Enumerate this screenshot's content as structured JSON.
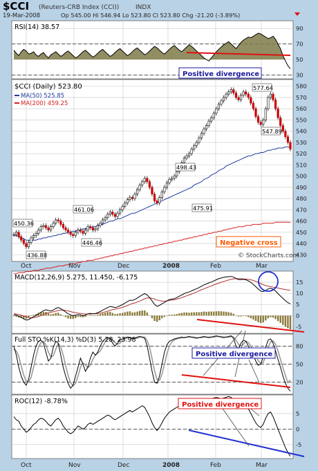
{
  "header": {
    "symbol": "$CCI",
    "source": "(Reuters-CRB Index (CCI))",
    "exchange": "INDX",
    "date": "19-Mar-2008",
    "quote": "Op 545.00  Hi 546.94  Lo 523.80  Cl 523.80  Chg -21.20 (-3.89%)",
    "watermark": "© StockCharts.com"
  },
  "colors": {
    "frame": "#b9d2e6",
    "panel": "#ffffff",
    "grid": "#c8c8c8",
    "price_line": "#000000",
    "up_bar": "#000000",
    "down_bar": "#cc0000",
    "ma50": "#1f3a9e",
    "ma200": "#d71f1f",
    "rsi_fill": "#7e7a48",
    "annotation_red": "#e01010",
    "annotation_blue": "#2030d0",
    "label_blue": "#1a1aa0",
    "label_orange": "#ff5a00",
    "label_red": "#e01010"
  },
  "months": [
    "Oct",
    "Nov",
    "Dec",
    "2008",
    "Feb",
    "Mar"
  ],
  "annotations": {
    "rsi": "Positive divergence",
    "price": "Negative cross",
    "sto": "Positive divergence",
    "roc": "Positive divergence"
  },
  "chart_data": [
    {
      "type": "line",
      "title": "RSI(14) 38.57",
      "y_ticks": [
        30,
        50,
        70,
        90
      ],
      "ylim": [
        25,
        100
      ],
      "reference_lines": [
        30,
        70
      ],
      "y_values": [
        62,
        58,
        55,
        60,
        63,
        61,
        57,
        58,
        60,
        56,
        54,
        57,
        59,
        55,
        52,
        56,
        58,
        60,
        57,
        54,
        56,
        59,
        61,
        58,
        55,
        52,
        54,
        57,
        60,
        62,
        59,
        56,
        53,
        55,
        58,
        61,
        63,
        60,
        57,
        54,
        56,
        59,
        62,
        64,
        61,
        58,
        55,
        57,
        60,
        63,
        65,
        62,
        59,
        56,
        58,
        61,
        64,
        67,
        65,
        62,
        59,
        57,
        60,
        63,
        66,
        68,
        65,
        62,
        60,
        63,
        66,
        69,
        67,
        64,
        61,
        58,
        55,
        52,
        50,
        48,
        52,
        56,
        60,
        63,
        66,
        69,
        71,
        73,
        70,
        67,
        64,
        68,
        72,
        75,
        77,
        79,
        78,
        80,
        82,
        84,
        83,
        81,
        79,
        77,
        78,
        80,
        76,
        70,
        64,
        55,
        48,
        42,
        38
      ]
    },
    {
      "type": "line",
      "title": "$CCI (Daily) 523.80",
      "series": [
        {
          "name": "MA(50) 525.85"
        },
        {
          "name": "MA(200) 459.25"
        }
      ],
      "y_ticks": [
        430,
        440,
        450,
        460,
        470,
        480,
        490,
        500,
        510,
        520,
        530,
        540,
        550,
        560,
        570,
        580
      ],
      "ylim": [
        424,
        586
      ],
      "price_labels": [
        "450.36",
        "436.88",
        "461.06",
        "446.46",
        "498.43",
        "475.91",
        "577.64",
        "547.89"
      ],
      "close": [
        448,
        450,
        446,
        443,
        440,
        437,
        441,
        445,
        447,
        449,
        452,
        455,
        456,
        454,
        452,
        455,
        458,
        461,
        460,
        457,
        454,
        452,
        450,
        448,
        447,
        450,
        452,
        451,
        449,
        452,
        455,
        454,
        452,
        453,
        456,
        458,
        461,
        463,
        466,
        468,
        466,
        464,
        467,
        470,
        473,
        476,
        479,
        481,
        480,
        484,
        488,
        492,
        495,
        498,
        495,
        490,
        484,
        478,
        476,
        481,
        486,
        490,
        494,
        497,
        498,
        500,
        504,
        508,
        512,
        516,
        518,
        520,
        524,
        527,
        530,
        534,
        538,
        542,
        545,
        549,
        552,
        556,
        560,
        564,
        567,
        570,
        573,
        575,
        577,
        574,
        570,
        568,
        572,
        575,
        573,
        570,
        565,
        560,
        553,
        548,
        546,
        550,
        560,
        570,
        573,
        568,
        560,
        552,
        545,
        540,
        535,
        530,
        524
      ],
      "ma50": [
        447,
        447,
        446,
        445,
        444,
        443,
        443,
        443,
        443,
        443,
        444,
        444,
        445,
        445,
        446,
        446,
        447,
        447,
        448,
        448,
        449,
        449,
        450,
        450,
        451,
        451,
        452,
        452,
        453,
        453,
        454,
        454,
        455,
        455,
        456,
        457,
        457,
        458,
        459,
        460,
        460,
        461,
        462,
        462,
        463,
        464,
        465,
        466,
        467,
        467,
        468,
        469,
        470,
        471,
        472,
        473,
        474,
        475,
        476,
        477,
        478,
        479,
        480,
        481,
        482,
        483,
        484,
        485,
        486,
        487,
        488,
        489,
        490,
        492,
        493,
        494,
        495,
        497,
        498,
        499,
        501,
        502,
        503,
        505,
        506,
        507,
        509,
        510,
        511,
        512,
        513,
        514,
        515,
        516,
        517,
        518,
        518,
        519,
        520,
        520,
        521,
        521,
        522,
        523,
        523,
        524,
        524,
        525,
        525,
        525,
        526,
        526,
        526
      ],
      "ma200": [
        413,
        413,
        414,
        414,
        414,
        415,
        415,
        415,
        416,
        416,
        416,
        417,
        417,
        418,
        418,
        418,
        419,
        419,
        420,
        420,
        420,
        421,
        421,
        422,
        422,
        422,
        423,
        423,
        424,
        424,
        425,
        425,
        425,
        426,
        426,
        427,
        427,
        428,
        428,
        429,
        429,
        430,
        430,
        431,
        431,
        432,
        432,
        433,
        433,
        434,
        434,
        435,
        435,
        436,
        436,
        437,
        437,
        438,
        438,
        439,
        439,
        440,
        440,
        441,
        441,
        442,
        442,
        443,
        443,
        444,
        444,
        445,
        445,
        446,
        446,
        447,
        447,
        448,
        448,
        449,
        449,
        450,
        450,
        451,
        451,
        452,
        452,
        453,
        453,
        454,
        454,
        455,
        455,
        455,
        456,
        456,
        456,
        457,
        457,
        457,
        457,
        458,
        458,
        458,
        458,
        458,
        459,
        459,
        459,
        459,
        459,
        459,
        459
      ]
    },
    {
      "type": "line",
      "title": "MACD(12,26,9) 5.275, 11.450, -6.175",
      "y_ticks": [
        -5,
        0,
        5,
        10,
        15
      ],
      "ylim": [
        -8,
        20
      ],
      "macd": [
        0.5,
        0.2,
        -0.3,
        -0.8,
        -1.5,
        -2,
        -1.8,
        -1.2,
        -0.5,
        0,
        0.8,
        1.5,
        2.2,
        2.6,
        2.3,
        2.1,
        2.5,
        3.2,
        3.6,
        3.1,
        2.4,
        1.6,
        0.8,
        0.3,
        0,
        0.2,
        0.5,
        0.3,
        0,
        0.2,
        0.8,
        1,
        0.8,
        0.9,
        1.3,
        1.8,
        2.5,
        3,
        3.6,
        4.1,
        3.9,
        3.6,
        3.9,
        4.4,
        4.9,
        5.6,
        6.3,
        6.9,
        6.8,
        7.2,
        7.9,
        8.6,
        9.3,
        9.9,
        9.3,
        8.1,
        6.6,
        5,
        4.2,
        4.6,
        5.3,
        5.9,
        6.6,
        7.2,
        7.4,
        7.6,
        8.1,
        8.7,
        9.3,
        9.9,
        10.3,
        10.6,
        11.1,
        11.6,
        12.1,
        12.6,
        13.2,
        13.8,
        14.2,
        14.7,
        15.1,
        15.6,
        16.1,
        16.6,
        16.9,
        17.2,
        17.4,
        17.5,
        17.6,
        17.3,
        16.7,
        16.2,
        16.2,
        16.3,
        16.1,
        15.6,
        14.9,
        14,
        13,
        11.9,
        11,
        10.8,
        11.3,
        12,
        12.3,
        11.9,
        11,
        9.9,
        8.8,
        7.7,
        6.7,
        5.8,
        5.3
      ],
      "signal": [
        0.8,
        0.7,
        0.5,
        0.2,
        -0.2,
        -0.6,
        -0.9,
        -1,
        -0.9,
        -0.7,
        -0.4,
        0,
        0.5,
        1,
        1.3,
        1.5,
        1.7,
        2,
        2.3,
        2.5,
        2.5,
        2.3,
        2.1,
        1.8,
        1.5,
        1.3,
        1.1,
        1,
        0.8,
        0.7,
        0.7,
        0.7,
        0.8,
        0.8,
        0.9,
        1.1,
        1.4,
        1.7,
        2,
        2.4,
        2.7,
        2.9,
        3.1,
        3.4,
        3.7,
        4.1,
        4.5,
        5,
        5.4,
        5.7,
        6.1,
        6.5,
        7,
        7.6,
        7.9,
        8,
        7.8,
        7.4,
        7,
        6.7,
        6.5,
        6.5,
        6.6,
        6.8,
        7,
        7.1,
        7.4,
        7.7,
        8.1,
        8.5,
        8.9,
        9.3,
        9.7,
        10.1,
        10.6,
        11.1,
        11.6,
        12,
        12.5,
        12.9,
        13.3,
        13.8,
        14.2,
        14.6,
        15,
        15.4,
        15.7,
        16,
        16.3,
        16.5,
        16.6,
        16.6,
        16.6,
        16.5,
        16.4,
        16.3,
        16.1,
        15.8,
        15.4,
        14.9,
        14.4,
        13.9,
        13.5,
        13.2,
        13,
        12.8,
        12.6,
        12.4,
        12.1,
        11.9,
        11.7,
        11.5,
        11.45
      ]
    },
    {
      "type": "line",
      "title": "Full STO %K(14,3) %D(3) 5.28, 23.98",
      "y_ticks": [
        20,
        50,
        80
      ],
      "ylim": [
        0,
        100
      ],
      "reference_lines": [
        20,
        50,
        80
      ],
      "k": [
        80,
        65,
        45,
        30,
        20,
        15,
        25,
        45,
        65,
        80,
        88,
        90,
        85,
        70,
        55,
        60,
        78,
        88,
        85,
        65,
        45,
        30,
        18,
        10,
        15,
        30,
        45,
        60,
        50,
        38,
        45,
        60,
        70,
        65,
        70,
        80,
        88,
        92,
        94,
        93,
        85,
        80,
        85,
        90,
        92,
        94,
        95,
        94,
        92,
        93,
        95,
        96,
        95,
        93,
        80,
        60,
        38,
        20,
        18,
        30,
        50,
        70,
        82,
        88,
        90,
        92,
        93,
        94,
        95,
        94,
        95,
        96,
        95,
        94,
        93,
        94,
        95,
        96,
        95,
        94,
        95,
        96,
        97,
        96,
        95,
        94,
        95,
        96,
        97,
        93,
        80,
        75,
        85,
        90,
        88,
        80,
        72,
        65,
        55,
        48,
        50,
        62,
        78,
        90,
        92,
        85,
        72,
        58,
        45,
        30,
        18,
        10,
        5
      ],
      "d": [
        75,
        72,
        63,
        47,
        32,
        22,
        20,
        28,
        45,
        63,
        78,
        86,
        88,
        82,
        70,
        62,
        64,
        75,
        84,
        79,
        65,
        47,
        31,
        19,
        14,
        18,
        30,
        45,
        52,
        49,
        44,
        48,
        58,
        65,
        68,
        72,
        79,
        87,
        91,
        93,
        91,
        86,
        83,
        85,
        89,
        92,
        94,
        94,
        94,
        93,
        93,
        95,
        95,
        95,
        89,
        78,
        59,
        39,
        25,
        23,
        33,
        50,
        67,
        80,
        87,
        90,
        92,
        93,
        94,
        94,
        95,
        95,
        95,
        95,
        94,
        94,
        94,
        95,
        95,
        95,
        95,
        95,
        96,
        96,
        96,
        95,
        95,
        95,
        96,
        95,
        90,
        83,
        80,
        83,
        88,
        86,
        80,
        72,
        64,
        56,
        51,
        53,
        63,
        77,
        87,
        89,
        83,
        72,
        58,
        44,
        31,
        19,
        24
      ]
    },
    {
      "type": "line",
      "title": "ROC(12) -8.78%",
      "y_ticks": [
        -5,
        0,
        5
      ],
      "ylim": [
        -9.5,
        11
      ],
      "reference_lines": [
        0
      ],
      "y_values": [
        4,
        3,
        2.5,
        1,
        0,
        -1,
        -0.5,
        0.5,
        1.5,
        2,
        3,
        3.5,
        3.2,
        2.5,
        1.5,
        1,
        2,
        3,
        3.5,
        2.5,
        1,
        0,
        -1,
        -1.5,
        -1,
        0,
        1,
        0.5,
        0,
        0.5,
        1.5,
        2,
        1.5,
        2,
        2.5,
        3,
        3.5,
        4,
        4.5,
        4.2,
        3.5,
        3,
        3.5,
        4,
        4.5,
        5,
        5.5,
        6,
        5.5,
        6,
        6.5,
        7,
        7.5,
        7,
        5.5,
        4,
        2,
        0.5,
        -0.5,
        0.5,
        2,
        3.5,
        4.5,
        5.5,
        6,
        6.5,
        7,
        7.5,
        8,
        8.5,
        9,
        9.2,
        9,
        8.5,
        8,
        8.5,
        9,
        9.5,
        9.8,
        9.5,
        9.8,
        10,
        10.2,
        10,
        9.8,
        10,
        10.2,
        10.5,
        10.2,
        9.5,
        8.5,
        7.5,
        7.8,
        8.2,
        7.5,
        6.5,
        5,
        3.5,
        2,
        1,
        0.5,
        1.5,
        3.5,
        5,
        5.5,
        4,
        2,
        0,
        -2,
        -4,
        -6,
        -7.5,
        -8.78
      ]
    }
  ]
}
